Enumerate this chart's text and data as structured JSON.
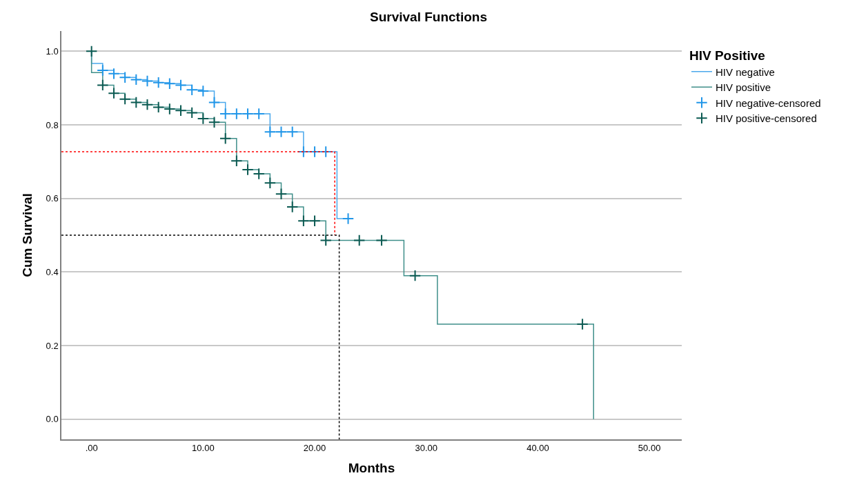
{
  "chart_data": {
    "type": "step",
    "title": "Survival Functions",
    "xlabel": "Months",
    "ylabel": "Cum Survival",
    "legend_title": "HIV Positive",
    "series": [
      {
        "name": "HIV negative",
        "color": "#4aa8ec",
        "x": [
          0,
          0,
          1,
          2,
          3,
          4,
          5,
          6,
          7,
          8,
          9,
          10,
          11,
          12,
          16,
          19,
          22,
          23
        ],
        "values": [
          1,
          0.967,
          0.948,
          0.939,
          0.929,
          0.923,
          0.919,
          0.915,
          0.912,
          0.908,
          0.895,
          0.892,
          0.861,
          0.83,
          0.781,
          0.727,
          0.545,
          0.545
        ]
      },
      {
        "name": "HIV positive",
        "color": "#3f8f8a",
        "x": [
          0,
          0,
          1,
          2,
          3,
          4,
          5,
          6,
          7,
          8,
          9,
          10,
          11,
          12,
          13,
          14,
          15,
          16,
          17,
          18,
          19,
          21,
          28,
          31,
          45,
          45
        ],
        "values": [
          1,
          0.942,
          0.908,
          0.886,
          0.87,
          0.861,
          0.855,
          0.848,
          0.843,
          0.839,
          0.833,
          0.817,
          0.807,
          0.763,
          0.702,
          0.678,
          0.667,
          0.642,
          0.612,
          0.577,
          0.539,
          0.486,
          0.39,
          0.258,
          0.258,
          0
        ]
      },
      {
        "name": "HIV negative-censored",
        "type": "scatter",
        "marker": "cross",
        "color": "#2196e8",
        "x": [
          1,
          2,
          3,
          4,
          5,
          6,
          7,
          8,
          9,
          10,
          11,
          12,
          13,
          14,
          15,
          16,
          17,
          18,
          19,
          20,
          21,
          23
        ],
        "values": [
          0.948,
          0.939,
          0.929,
          0.923,
          0.919,
          0.915,
          0.912,
          0.908,
          0.895,
          0.892,
          0.861,
          0.83,
          0.83,
          0.83,
          0.83,
          0.781,
          0.781,
          0.781,
          0.727,
          0.727,
          0.727,
          0.545
        ]
      },
      {
        "name": "HIV positive-censored",
        "type": "scatter",
        "marker": "cross",
        "color": "#0b5a52",
        "x": [
          0,
          1,
          2,
          3,
          4,
          5,
          6,
          7,
          8,
          9,
          10,
          11,
          12,
          13,
          14,
          15,
          16,
          17,
          18,
          19,
          20,
          21,
          24,
          26,
          29,
          44
        ],
        "values": [
          1,
          0.908,
          0.886,
          0.87,
          0.861,
          0.855,
          0.848,
          0.843,
          0.839,
          0.833,
          0.817,
          0.807,
          0.763,
          0.702,
          0.678,
          0.667,
          0.642,
          0.612,
          0.577,
          0.539,
          0.539,
          0.486,
          0.486,
          0.486,
          0.39,
          0.258
        ]
      },
      {
        "type": "line",
        "line_style": "dotted",
        "color": "#ff0000",
        "x": [
          -2.7,
          21.8,
          21.8
        ],
        "values": [
          0.727,
          0.727,
          0.5
        ]
      },
      {
        "type": "line",
        "line_style": "dotted",
        "color": "#000000",
        "x": [
          -2.7,
          22.2,
          22.2
        ],
        "values": [
          0.5,
          0.5,
          -0.055
        ]
      }
    ],
    "xlim": [
      -2.7,
      52.9
    ],
    "xticks": [
      {
        "value": 0,
        "label": ".00"
      },
      {
        "value": 10,
        "label": "10.00"
      },
      {
        "value": 20,
        "label": "20.00"
      },
      {
        "value": 30,
        "label": "30.00"
      },
      {
        "value": 40,
        "label": "40.00"
      },
      {
        "value": 50,
        "label": "50.00"
      }
    ],
    "ylim": [
      -0.055,
      1.055
    ],
    "yticks": [
      {
        "value": 0,
        "label": "0.0"
      },
      {
        "value": 0.2,
        "label": "0.2"
      },
      {
        "value": 0.4,
        "label": "0.4"
      },
      {
        "value": 0.6,
        "label": "0.6"
      },
      {
        "value": 0.8,
        "label": "0.8"
      },
      {
        "value": 1,
        "label": "1.0"
      }
    ],
    "grid": "y",
    "legend": "top right"
  }
}
